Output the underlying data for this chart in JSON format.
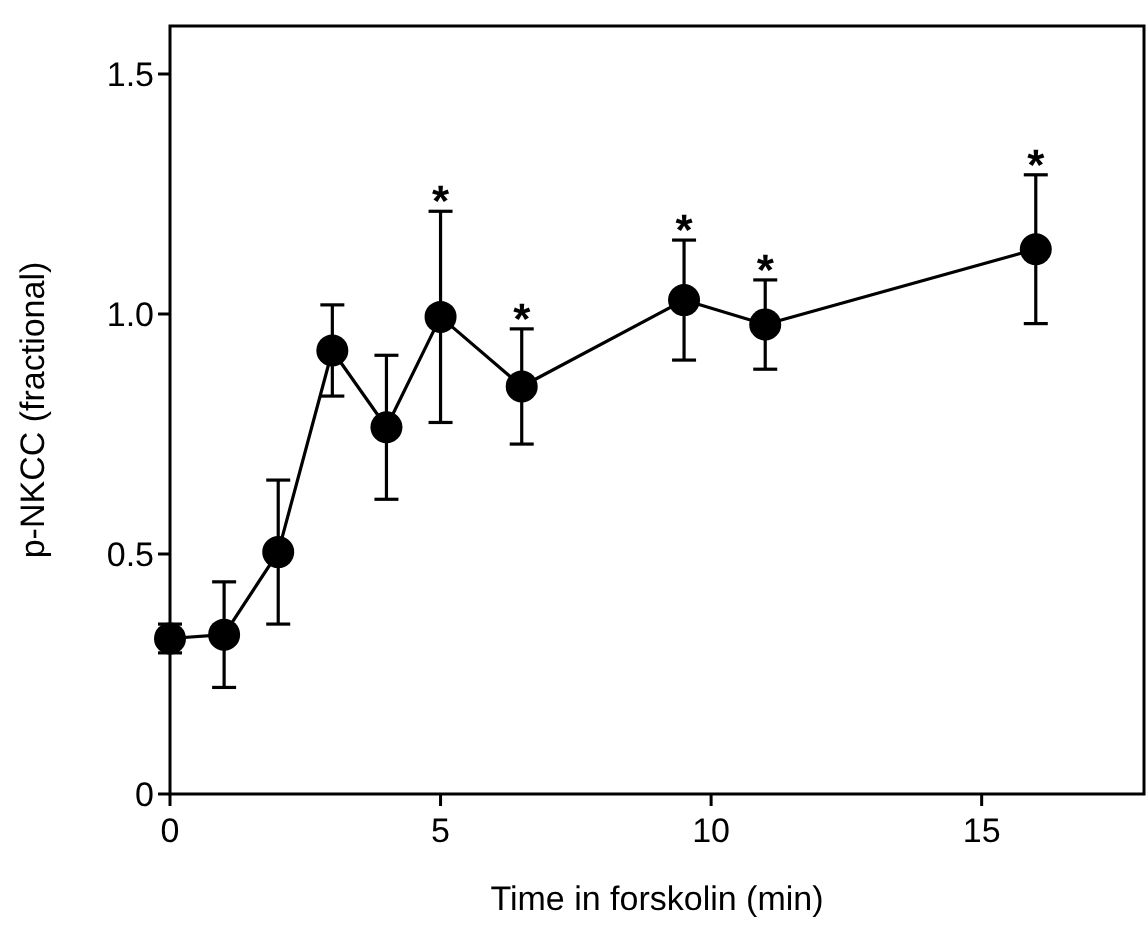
{
  "chart_data": {
    "type": "line",
    "xlabel": "Time in forskolin (min)",
    "ylabel": "p-NKCC (fractional)",
    "x": [
      0,
      1,
      2,
      3,
      4,
      5,
      6.5,
      9.5,
      11,
      16
    ],
    "series": [
      {
        "color": "#000000",
        "values": [
          0.324,
          0.332,
          0.504,
          0.924,
          0.764,
          0.994,
          0.849,
          1.029,
          0.978,
          1.135
        ],
        "errors": [
          0.03,
          0.11,
          0.15,
          0.095,
          0.15,
          0.22,
          0.12,
          0.125,
          0.093,
          0.155
        ]
      }
    ],
    "xlim": [
      0,
      18
    ],
    "xticks": [
      0,
      5,
      10,
      15
    ],
    "ylim": [
      0,
      1.6
    ],
    "yticks": [
      0,
      0.5,
      {
        "value": 1,
        "label": "1.0"
      },
      1.5
    ],
    "marker": "circle",
    "line_style": "solid",
    "grid": false,
    "annotations": [
      {
        "text": "*",
        "x": 5,
        "y": 1.214
      },
      {
        "text": "*",
        "x": 6.5,
        "y": 0.969
      },
      {
        "text": "*",
        "x": 9.5,
        "y": 1.154
      },
      {
        "text": "*",
        "x": 11,
        "y": 1.071
      },
      {
        "text": "*",
        "x": 16,
        "y": 1.29
      }
    ]
  }
}
